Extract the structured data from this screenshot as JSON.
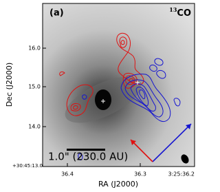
{
  "panel": {
    "label": "(a)",
    "species": {
      "isotope": "13",
      "molecule": "CO"
    },
    "scale_bar": "1.0\" (230.0 AU)"
  },
  "axes": {
    "x_label": "RA (J2000)",
    "y_label": "Dec (J2000)",
    "x_ticks": [
      "36.4",
      "36.3",
      "3:25:36.2"
    ],
    "y_ticks": [
      "16.0",
      "15.0",
      "14.0",
      "+30:45:13.0"
    ]
  }
}
